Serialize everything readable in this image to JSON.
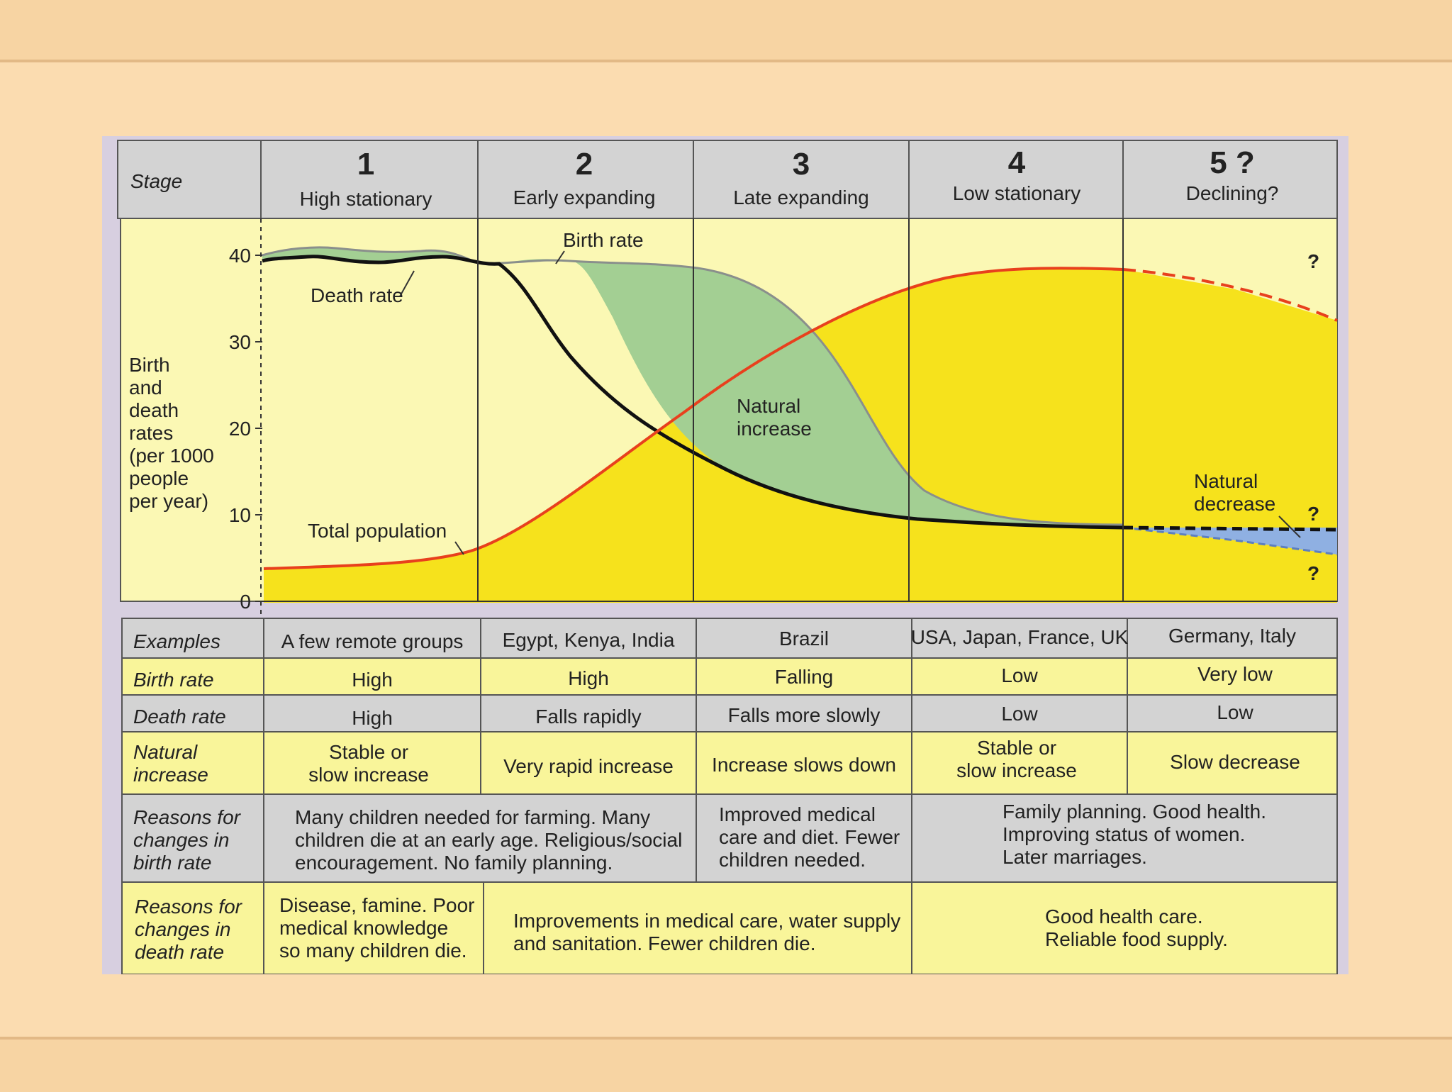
{
  "stage_header": {
    "label": "Stage",
    "stages": [
      {
        "number": "1",
        "name": "High stationary"
      },
      {
        "number": "2",
        "name": "Early expanding"
      },
      {
        "number": "3",
        "name": "Late expanding"
      },
      {
        "number": "4",
        "name": "Low stationary"
      },
      {
        "number": "5 ?",
        "name": "Declining?"
      }
    ]
  },
  "graph": {
    "y_axis_label": [
      "Birth",
      "and",
      "death",
      "rates",
      "(per 1000",
      "people",
      "per year)"
    ],
    "y_ticks": [
      "40",
      "30",
      "20",
      "10",
      "0"
    ],
    "labels": {
      "birth_rate": "Birth rate",
      "death_rate": "Death rate",
      "natural_increase_1": "Natural",
      "natural_increase_2": "increase",
      "total_population": "Total population",
      "natural_decrease_1": "Natural",
      "natural_decrease_2": "decrease",
      "question_mark": "?"
    },
    "colors": {
      "background": "#fbf8b4",
      "population_fill": "#f6e21c",
      "natural_increase_fill": "#a3cf93",
      "natural_decrease_fill": "#8fb0e2",
      "population_line": "#e8401d",
      "death_line": "#111111",
      "birth_line": "#8a8f8c"
    }
  },
  "table": {
    "rows": [
      {
        "label": [
          "Examples"
        ],
        "cells": [
          [
            "A few remote groups"
          ],
          [
            "Egypt, Kenya, India"
          ],
          [
            "Brazil"
          ],
          [
            "USA, Japan, France, UK"
          ],
          [
            "Germany, Italy"
          ]
        ]
      },
      {
        "label": [
          "Birth rate"
        ],
        "cells": [
          [
            "High"
          ],
          [
            "High"
          ],
          [
            "Falling"
          ],
          [
            "Low"
          ],
          [
            "Very low"
          ]
        ]
      },
      {
        "label": [
          "Death rate"
        ],
        "cells": [
          [
            "High"
          ],
          [
            "Falls rapidly"
          ],
          [
            "Falls more slowly"
          ],
          [
            "Low"
          ],
          [
            "Low"
          ]
        ]
      },
      {
        "label": [
          "Natural",
          "increase"
        ],
        "cells": [
          [
            "Stable or",
            "slow increase"
          ],
          [
            "Very rapid increase"
          ],
          [
            "Increase slows down"
          ],
          [
            "Stable or",
            "slow increase"
          ],
          [
            "Slow decrease"
          ]
        ]
      }
    ],
    "birth_reasons": {
      "label": [
        "Reasons for",
        "changes in",
        "birth rate"
      ],
      "stage_1_2": [
        "Many children needed for farming. Many",
        "children die at an early age. Religious/social",
        "encouragement. No family planning."
      ],
      "stage_3": [
        "Improved medical",
        "care and diet. Fewer",
        "children needed."
      ],
      "stage_4_5": [
        "Family planning. Good health.",
        "Improving status of women.",
        "Later marriages."
      ]
    },
    "death_reasons": {
      "label": [
        "Reasons for",
        "changes in",
        "death rate"
      ],
      "stage_1": [
        "Disease, famine. Poor",
        "medical knowledge",
        "so many children die."
      ],
      "stage_2_3": [
        "Improvements in medical care, water supply",
        "and sanitation. Fewer children die."
      ],
      "stage_4_5": [
        "Good health care.",
        "Reliable food supply."
      ]
    },
    "colors": {
      "gray_row": "#d3d3d3",
      "yellow_row": "#f9f59a"
    }
  }
}
